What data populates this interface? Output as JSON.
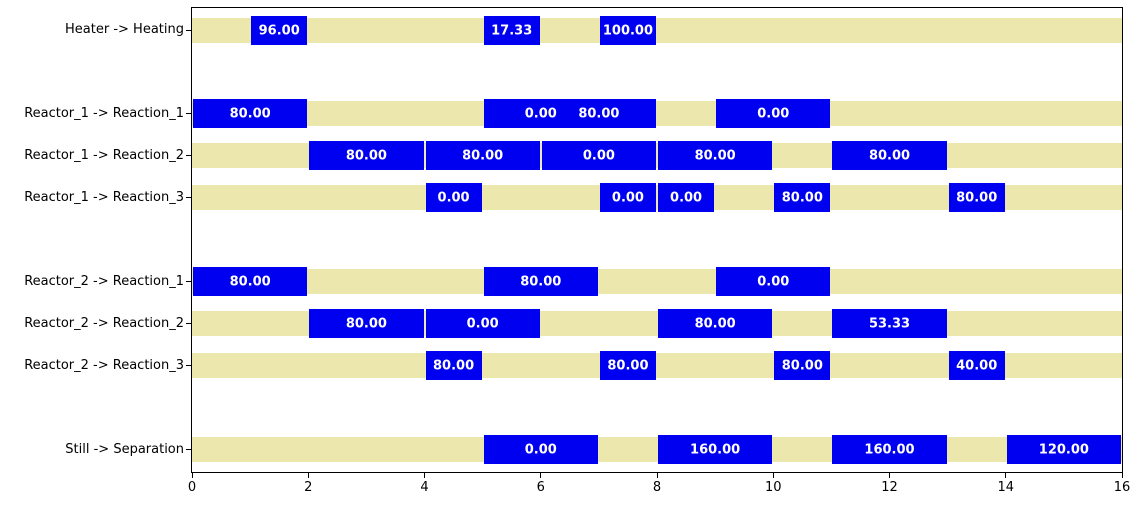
{
  "chart_data": {
    "type": "bar",
    "subtype": "gantt-schedule",
    "title": "",
    "xlabel": "",
    "ylabel": "",
    "xlim": [
      0,
      16
    ],
    "x_ticks": [
      {
        "value": 0,
        "label": "0"
      },
      {
        "value": 2,
        "label": "2"
      },
      {
        "value": 4,
        "label": "4"
      },
      {
        "value": 6,
        "label": "6"
      },
      {
        "value": 8,
        "label": "8"
      },
      {
        "value": 10,
        "label": "10"
      },
      {
        "value": 12,
        "label": "12"
      },
      {
        "value": 14,
        "label": "14"
      },
      {
        "value": 16,
        "label": "16"
      }
    ],
    "grid": false,
    "legend": "none",
    "colors": {
      "task_bar": "#0000f0",
      "idle_band": "#ece7ac",
      "bar_label_text": "#ffffff",
      "axis": "#000000",
      "background": "#ffffff"
    },
    "rows": [
      {
        "label": "Heater -> Heating",
        "slot": 0,
        "bars": [
          {
            "start": 1,
            "end": 2,
            "label": "96.00"
          },
          {
            "start": 5,
            "end": 6,
            "label": "17.33"
          },
          {
            "start": 7,
            "end": 8,
            "label": "100.00"
          }
        ]
      },
      {
        "label": "Reactor_1 -> Reaction_1",
        "slot": 2,
        "bars": [
          {
            "start": 0,
            "end": 2,
            "label": "80.00"
          },
          {
            "start": 5,
            "end": 7,
            "label": "0.00"
          },
          {
            "start": 6,
            "end": 8,
            "label": "80.00"
          },
          {
            "start": 9,
            "end": 11,
            "label": "0.00"
          }
        ]
      },
      {
        "label": "Reactor_1 -> Reaction_2",
        "slot": 3,
        "bars": [
          {
            "start": 2,
            "end": 4,
            "label": "80.00"
          },
          {
            "start": 4,
            "end": 6,
            "label": "80.00"
          },
          {
            "start": 6,
            "end": 8,
            "label": "0.00"
          },
          {
            "start": 8,
            "end": 10,
            "label": "80.00"
          },
          {
            "start": 11,
            "end": 13,
            "label": "80.00"
          }
        ]
      },
      {
        "label": "Reactor_1 -> Reaction_3",
        "slot": 4,
        "bars": [
          {
            "start": 4,
            "end": 5,
            "label": "0.00"
          },
          {
            "start": 7,
            "end": 8,
            "label": "0.00"
          },
          {
            "start": 8,
            "end": 9,
            "label": "0.00"
          },
          {
            "start": 10,
            "end": 11,
            "label": "80.00"
          },
          {
            "start": 13,
            "end": 14,
            "label": "80.00"
          }
        ]
      },
      {
        "label": "Reactor_2 -> Reaction_1",
        "slot": 6,
        "bars": [
          {
            "start": 0,
            "end": 2,
            "label": "80.00"
          },
          {
            "start": 5,
            "end": 7,
            "label": "80.00"
          },
          {
            "start": 9,
            "end": 11,
            "label": "0.00"
          }
        ]
      },
      {
        "label": "Reactor_2 -> Reaction_2",
        "slot": 7,
        "bars": [
          {
            "start": 2,
            "end": 4,
            "label": "80.00"
          },
          {
            "start": 4,
            "end": 6,
            "label": "0.00"
          },
          {
            "start": 8,
            "end": 10,
            "label": "80.00"
          },
          {
            "start": 11,
            "end": 13,
            "label": "53.33"
          }
        ]
      },
      {
        "label": "Reactor_2 -> Reaction_3",
        "slot": 8,
        "bars": [
          {
            "start": 4,
            "end": 5,
            "label": "80.00"
          },
          {
            "start": 7,
            "end": 8,
            "label": "80.00"
          },
          {
            "start": 10,
            "end": 11,
            "label": "80.00"
          },
          {
            "start": 13,
            "end": 14,
            "label": "40.00"
          }
        ]
      },
      {
        "label": "Still -> Separation",
        "slot": 10,
        "bars": [
          {
            "start": 5,
            "end": 7,
            "label": "0.00"
          },
          {
            "start": 8,
            "end": 10,
            "label": "160.00"
          },
          {
            "start": 11,
            "end": 13,
            "label": "160.00"
          },
          {
            "start": 14,
            "end": 16,
            "label": "120.00"
          }
        ]
      }
    ]
  }
}
